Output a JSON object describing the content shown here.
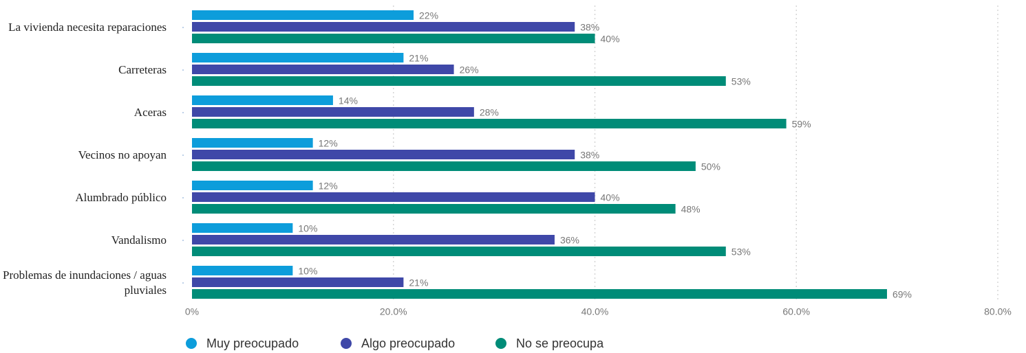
{
  "chart_data": {
    "type": "bar",
    "orientation": "horizontal",
    "categories": [
      "La vivienda necesita reparaciones",
      "Carreteras",
      "Aceras",
      "Vecinos no apoyan",
      "Alumbrado público",
      "Vandalismo",
      "Problemas de inundaciones / aguas pluviales"
    ],
    "series": [
      {
        "name": "Muy preocupado",
        "color": "#0d9ddb",
        "values": [
          22,
          21,
          14,
          12,
          12,
          10,
          10
        ],
        "value_labels": [
          "22%",
          "21%",
          "14%",
          "12%",
          "12%",
          "10%",
          "10%"
        ]
      },
      {
        "name": "Algo preocupado",
        "color": "#3f48a8",
        "values": [
          38,
          26,
          28,
          38,
          40,
          36,
          21
        ],
        "value_labels": [
          "38%",
          "26%",
          "28%",
          "38%",
          "40%",
          "36%",
          "21%"
        ]
      },
      {
        "name": "No se preocupa",
        "color": "#008c78",
        "values": [
          40,
          53,
          59,
          50,
          48,
          53,
          69
        ],
        "value_labels": [
          "40%",
          "53%",
          "59%",
          "50%",
          "48%",
          "53%",
          "69%"
        ]
      }
    ],
    "xlim": [
      0,
      80
    ],
    "xticks": [
      {
        "value": 0,
        "label": "0%"
      },
      {
        "value": 20,
        "label": "20.0%"
      },
      {
        "value": 40,
        "label": "40.0%"
      },
      {
        "value": 60,
        "label": "60.0%"
      },
      {
        "value": 80,
        "label": "80.0%"
      }
    ],
    "grid": true,
    "legend": "bottom"
  }
}
